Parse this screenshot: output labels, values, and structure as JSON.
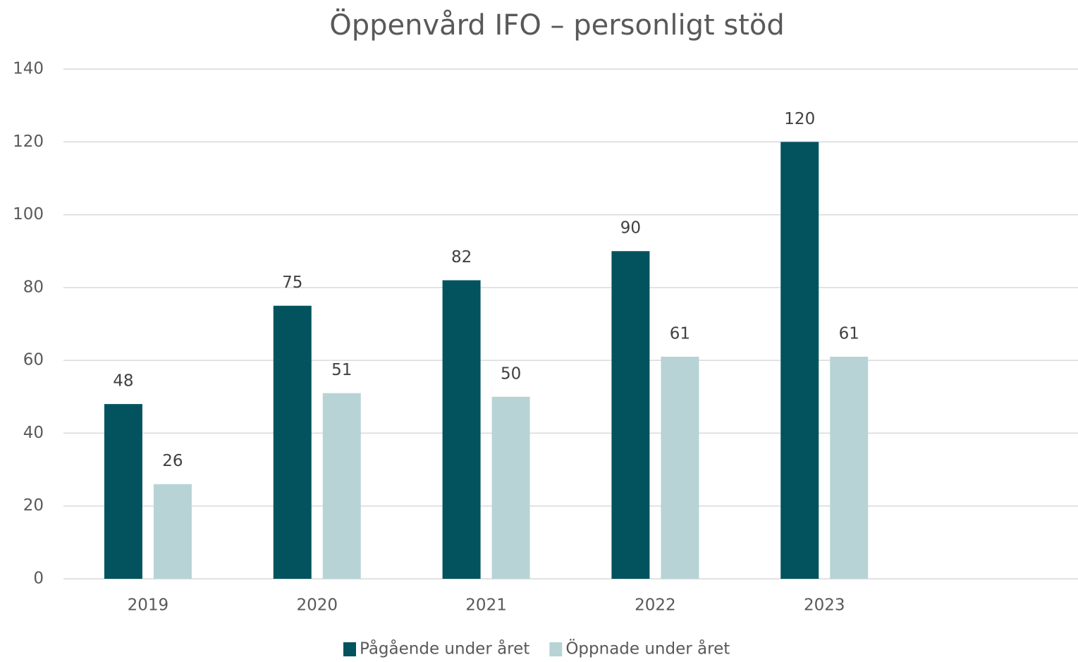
{
  "chart_data": {
    "type": "bar",
    "title": "Öppenvård IFO – personligt stöd",
    "categories": [
      "2019",
      "2020",
      "2021",
      "2022",
      "2023",
      null
    ],
    "series": [
      {
        "name": "Pågående under året",
        "color": "#03535f",
        "values": [
          48,
          75,
          82,
          90,
          120,
          null
        ]
      },
      {
        "name": "Öppnade under året",
        "color": "#b8d3d6",
        "values": [
          26,
          51,
          50,
          61,
          61,
          null
        ]
      }
    ],
    "ylim": [
      0,
      140
    ],
    "yticks": [
      0,
      20,
      40,
      60,
      80,
      100,
      120,
      140
    ],
    "grid": true,
    "legend": "bottom"
  }
}
